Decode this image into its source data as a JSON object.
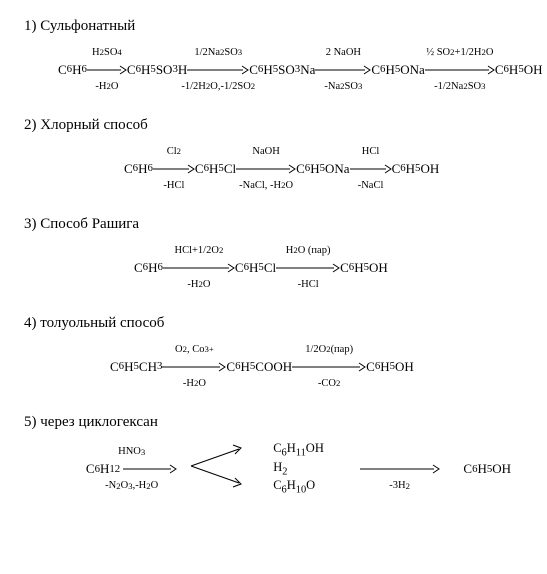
{
  "sections": [
    {
      "title": "1)  Сульфонатный",
      "indent": 34,
      "steps": [
        {
          "type": "species",
          "formula": "C<sub>6</sub>H<sub>6</sub>"
        },
        {
          "type": "arrow",
          "above": "H<sub>2</sub>SO<sub>4</sub>",
          "below": "-H<sub>2</sub>O",
          "w": 40
        },
        {
          "type": "species",
          "formula": "C<sub>6</sub>H<sub>5</sub>SO<sub>3</sub>H"
        },
        {
          "type": "arrow",
          "above": "1/2Na<sub>2</sub>SO<sub>3</sub>",
          "below": "-1/2H<sub>2</sub>O,-1/2SO<sub>2</sub>",
          "w": 62
        },
        {
          "type": "species",
          "formula": "C<sub>6</sub>H<sub>5</sub>SO<sub>3</sub>Na"
        },
        {
          "type": "arrow",
          "above": "2 NaOH",
          "below": "-Na<sub>2</sub>SO<sub>3</sub>",
          "w": 56
        },
        {
          "type": "species",
          "formula": "C<sub>6</sub>H<sub>5</sub>ONa"
        },
        {
          "type": "arrow",
          "above": "½ SO<sub>2</sub>+1/2H<sub>2</sub>O",
          "below": "-1/2Na<sub>2</sub>SO<sub>3</sub>",
          "w": 70
        },
        {
          "type": "species",
          "formula": "C<sub>6</sub>H<sub>5</sub>OH"
        }
      ]
    },
    {
      "title": "2)  Хлорный способ",
      "indent": 100,
      "steps": [
        {
          "type": "species",
          "formula": "C<sub>6</sub>H<sub>6</sub>"
        },
        {
          "type": "arrow",
          "above": "Cl<sub>2</sub>",
          "below": "-HCl",
          "w": 42
        },
        {
          "type": "species",
          "formula": "C<sub>6</sub>H<sub>5</sub>Cl"
        },
        {
          "type": "arrow",
          "above": "NaOH",
          "below": "-NaCl, -H<sub>2</sub>O",
          "w": 60
        },
        {
          "type": "species",
          "formula": "C<sub>6</sub>H<sub>5</sub>ONa"
        },
        {
          "type": "arrow",
          "above": "HCl",
          "below": "-NaCl",
          "w": 42
        },
        {
          "type": "species",
          "formula": "C<sub>6</sub>H<sub>5</sub>OH"
        }
      ]
    },
    {
      "title": "3)  Способ Рашига",
      "indent": 110,
      "steps": [
        {
          "type": "species",
          "formula": "C<sub>6</sub>H<sub>6</sub>"
        },
        {
          "type": "arrow",
          "above": "HCl+1/2O<sub>2</sub>",
          "below": "-H<sub>2</sub>O",
          "w": 72
        },
        {
          "type": "species",
          "formula": "C<sub>6</sub>H<sub>5</sub>Cl"
        },
        {
          "type": "arrow",
          "above": "H<sub>2</sub>O (пар)",
          "below": "-HCl",
          "w": 64
        },
        {
          "type": "species",
          "formula": "C<sub>6</sub>H<sub>5</sub>OH"
        }
      ]
    },
    {
      "title": "4)  толуольный способ",
      "indent": 86,
      "steps": [
        {
          "type": "species",
          "formula": "C<sub>6</sub>H<sub>5</sub>CH<sub>3</sub>"
        },
        {
          "type": "arrow",
          "above": "O<sub>2</sub>, Co<sup>3+</sup>",
          "below": "-H<sub>2</sub>O",
          "w": 64
        },
        {
          "type": "species",
          "formula": "C<sub>6</sub>H<sub>5</sub>COOH"
        },
        {
          "type": "arrow",
          "above": "1/2O<sub>2</sub>(пар)",
          "below": "-CO<sub>2</sub>",
          "w": 74
        },
        {
          "type": "species",
          "formula": "C<sub>6</sub>H<sub>5</sub>OH"
        }
      ]
    }
  ],
  "section5": {
    "title": "5)  через циклогексан",
    "start": "C<sub>6</sub>H<sub>12</sub>",
    "arrow1_above": "HNO<sub>3</sub>",
    "arrow1_below": "-N<sub>2</sub>O<sub>3</sub>,-H<sub>2</sub>O",
    "mid_top": "C<sub>6</sub>H<sub>11</sub>OH",
    "mid_mid": "H<sub>2</sub>",
    "mid_bot": "C<sub>6</sub>H<sub>10</sub>O",
    "arrow2_below": "-3H<sub>2</sub>",
    "end": "C<sub>6</sub>H<sub>5</sub>OH"
  }
}
